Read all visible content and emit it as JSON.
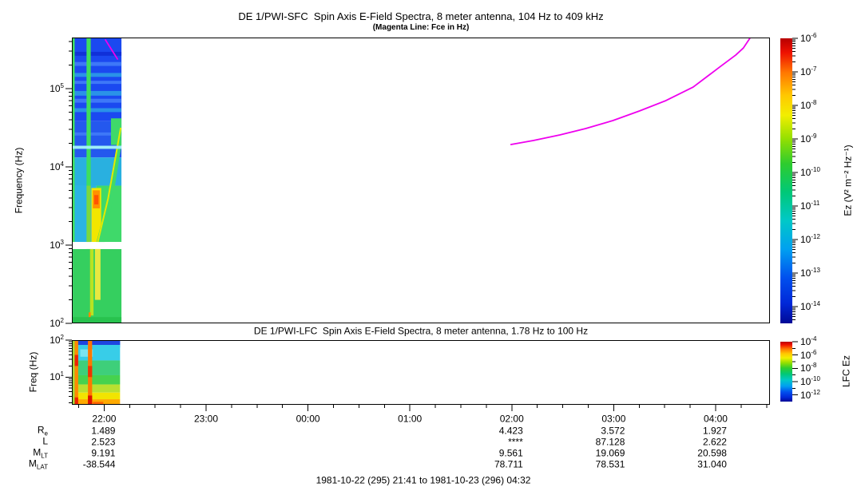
{
  "chart_data": [
    {
      "id": "sfc",
      "type": "heatmap",
      "title": "DE 1/PWI-SFC  Spin Axis E-Field Spectra, 8 meter antenna, 104 Hz to 409 kHz",
      "subtitle": "(Magenta Line: Fce in Hz)",
      "ylabel": "Frequency (Hz)",
      "yaxis": {
        "scale": "log",
        "unit": "Hz",
        "min_log": 2.0,
        "max_log": 5.653,
        "major_logs": [
          2,
          3,
          4,
          5
        ],
        "major_ticks": [
          "10^2",
          "10^3",
          "10^4",
          "10^5"
        ]
      },
      "xaxis": {
        "start_hour": 21.6833,
        "end_hour": 28.5333,
        "tick_hours": [
          22,
          23,
          24,
          25,
          26,
          27,
          28
        ],
        "tick_labels": [
          "22:00",
          "23:00",
          "00:00",
          "01:00",
          "02:00",
          "03:00",
          "04:00"
        ],
        "minor_step_hours": 0.25
      },
      "colorbar": {
        "label": "Ez (V² m⁻² Hz⁻¹)",
        "max_exp": -6,
        "min_exp": -14.5,
        "log_minors": true,
        "tick_exps": [
          -6,
          -7,
          -8,
          -9,
          -10,
          -11,
          -12,
          -13,
          -14
        ],
        "tick_labels": [
          "10^-6",
          "10^-7",
          "10^-8",
          "10^-9",
          "10^-10",
          "10^-11",
          "10^-12",
          "10^-13",
          "10^-14"
        ]
      },
      "fce_line": {
        "color": "#ee00ee",
        "segments": [
          [
            [
              0.0481,
              5.622
            ],
            [
              0.0653,
              5.378
            ]
          ],
          [
            [
              0.629,
              4.286
            ],
            [
              0.661,
              4.337
            ],
            [
              0.699,
              4.408
            ],
            [
              0.736,
              4.49
            ],
            [
              0.775,
              4.592
            ],
            [
              0.813,
              4.714
            ],
            [
              0.851,
              4.847
            ],
            [
              0.89,
              5.02
            ],
            [
              0.928,
              5.276
            ],
            [
              0.951,
              5.429
            ],
            [
              0.962,
              5.52
            ],
            [
              0.971,
              5.64
            ]
          ]
        ]
      },
      "band": {
        "t_end": 0.071,
        "features": [
          {
            "r": [
              0,
              0.071,
              4.585,
              5.653
            ],
            "c": "#1b49f0"
          },
          {
            "r": [
              0,
              0.071,
              4.12,
              4.585
            ],
            "c": "#2458ee"
          },
          {
            "r": [
              0,
              0.071,
              3.76,
              4.12
            ],
            "c": "#29b0e0"
          },
          {
            "r": [
              0,
              0.035,
              3.04,
              3.76
            ],
            "c": "#2ab4e4"
          },
          {
            "r": [
              0.035,
              0.071,
              3.04,
              3.76
            ],
            "c": "#3fd96a"
          },
          {
            "r": [
              0,
              0.071,
              2.0,
              2.95
            ],
            "c": "#35cf5f"
          },
          {
            "r": [
              0,
              0.071,
              5.42,
              5.47
            ],
            "c": "#1030d8"
          },
          {
            "r": [
              0,
              0.071,
              5.29,
              5.34
            ],
            "c": "#3e78f8"
          },
          {
            "r": [
              0,
              0.071,
              5.15,
              5.2
            ],
            "c": "#2a92e8"
          },
          {
            "r": [
              0,
              0.071,
              5.06,
              5.1
            ],
            "c": "#3e78f8"
          },
          {
            "r": [
              0,
              0.071,
              4.91,
              4.97
            ],
            "c": "#2a92e8"
          },
          {
            "r": [
              0,
              0.071,
              4.82,
              4.87
            ],
            "c": "#3e78f8"
          },
          {
            "r": [
              0,
              0.071,
              4.7,
              4.75
            ],
            "c": "#2a92e8"
          },
          {
            "r": [
              0,
              0.071,
              4.4,
              4.44
            ],
            "c": "#3e78f8"
          },
          {
            "r": [
              0,
              0.004,
              2.95,
              5.653
            ],
            "c": "#3ede5e"
          },
          {
            "r": [
              0.021,
              0.027,
              3.76,
              5.653
            ],
            "c": "#3ede5e"
          },
          {
            "r": [
              0.021,
              0.027,
              2.95,
              3.76
            ],
            "c": "#7ad840"
          },
          {
            "r": [
              0.028,
              0.042,
              3.04,
              3.73
            ],
            "c": "#f2e600"
          },
          {
            "r": [
              0.03,
              0.04,
              3.47,
              3.7
            ],
            "c": "#ff9100"
          },
          {
            "r": [
              0.032,
              0.038,
              3.52,
              3.64
            ],
            "c": "#ff5500"
          },
          {
            "p": [
              [
                0.034,
                3.0
              ],
              [
                0.05,
                3.55
              ],
              [
                0.062,
                4.15
              ],
              [
                0.071,
                4.62
              ],
              [
                0.071,
                4.28
              ],
              [
                0.058,
                3.55
              ],
              [
                0.046,
                3.0
              ]
            ],
            "c": "#3fd96a"
          },
          {
            "r": [
              0.056,
              0.071,
              4.28,
              4.62
            ],
            "c": "#3fd96a"
          },
          {
            "l": [
              [
                0.036,
                3.0
              ],
              [
                0.052,
                3.6
              ],
              [
                0.064,
                4.2
              ],
              [
                0.07,
                4.5
              ]
            ],
            "c": "#e3ea00",
            "w": 2
          },
          {
            "r": [
              0,
              0.071,
              4.23,
              4.27
            ],
            "c": "#9feef8"
          },
          {
            "r": [
              0,
              0.071,
              2.95,
              3.04
            ],
            "c": "#ffffff"
          },
          {
            "r": [
              0.026,
              0.031,
              2.1,
              2.95
            ],
            "c": "#b8e322"
          },
          {
            "r": [
              0.033,
              0.041,
              2.3,
              2.95
            ],
            "c": "#e8e840"
          },
          {
            "r": [
              0.024,
              0.027,
              2.02,
              2.14
            ],
            "c": "#ff8800"
          },
          {
            "r": [
              0,
              0.071,
              2.0,
              2.08
            ],
            "c": "#28c24e"
          }
        ]
      }
    },
    {
      "id": "lfc",
      "type": "heatmap",
      "title": "DE 1/PWI-LFC  Spin Axis E-Field Spectra, 8 meter antenna, 1.78 Hz to 100 Hz",
      "ylabel": "Freq (Hz)",
      "yaxis": {
        "scale": "log",
        "unit": "Hz",
        "min_log": 0.25,
        "max_log": 2.0,
        "major_logs": [
          1,
          2
        ],
        "major_ticks": [
          "10^1",
          "10^2"
        ]
      },
      "colorbar": {
        "label": "LFC Ez",
        "max_exp": -4,
        "min_exp": -13,
        "tick_exps": [
          -4,
          -6,
          -8,
          -10,
          -12
        ],
        "tick_labels": [
          "10^-4",
          "10^-6",
          "10^-8",
          "10^-10",
          "10^-12"
        ],
        "minor_exps": [
          -5,
          -7,
          -9,
          -11
        ]
      },
      "band": {
        "t_end": 0.069,
        "features": [
          {
            "r": [
              0,
              0.069,
              1.8,
              2.0
            ],
            "c": "#2f9ae8"
          },
          {
            "r": [
              0.008,
              0.069,
              1.87,
              2.0
            ],
            "c": "#1f45e0"
          },
          {
            "r": [
              0,
              0.069,
              1.45,
              1.87
            ],
            "c": "#38cde8"
          },
          {
            "r": [
              0,
              0.069,
              1.05,
              1.45
            ],
            "c": "#3ecf7a"
          },
          {
            "r": [
              0,
              0.069,
              0.8,
              1.05
            ],
            "c": "#46d24e"
          },
          {
            "r": [
              0,
              0.069,
              0.58,
              0.8
            ],
            "c": "#b8e030"
          },
          {
            "r": [
              0,
              0.069,
              0.4,
              0.58
            ],
            "c": "#f2e400"
          },
          {
            "r": [
              0,
              0.069,
              0.25,
              0.4
            ],
            "c": "#ffaa00"
          },
          {
            "r": [
              0.012,
              0.03,
              1.55,
              1.75
            ],
            "c": "#7ae4f2"
          },
          {
            "r": [
              0,
              0.004,
              0.25,
              2.0
            ],
            "c": "#9fd838"
          },
          {
            "r": [
              0.004,
              0.009,
              0.25,
              2.0
            ],
            "c": "#ff8800"
          },
          {
            "r": [
              0.004,
              0.009,
              1.3,
              1.6
            ],
            "c": "#ee2200"
          },
          {
            "r": [
              0.004,
              0.009,
              0.25,
              0.45
            ],
            "c": "#ee2200"
          },
          {
            "r": [
              0.023,
              0.029,
              0.25,
              2.0
            ],
            "c": "#ff7700"
          },
          {
            "r": [
              0.023,
              0.029,
              1.0,
              1.3
            ],
            "c": "#ee3300"
          },
          {
            "r": [
              0.023,
              0.029,
              0.25,
              0.5
            ],
            "c": "#dd1100"
          },
          {
            "r": [
              0.03,
              0.045,
              0.25,
              0.33
            ],
            "c": "#ff6600"
          }
        ]
      }
    }
  ],
  "colorbar_gradient": [
    [
      "0",
      "#b80000"
    ],
    [
      "0.05",
      "#ee1100"
    ],
    [
      "0.12",
      "#ff7700"
    ],
    [
      "0.20",
      "#ffc800"
    ],
    [
      "0.27",
      "#f2ee00"
    ],
    [
      "0.35",
      "#97e000"
    ],
    [
      "0.44",
      "#2ecc2e"
    ],
    [
      "0.54",
      "#00c878"
    ],
    [
      "0.64",
      "#00c8c8"
    ],
    [
      "0.74",
      "#00a0f0"
    ],
    [
      "0.84",
      "#0050ee"
    ],
    [
      "0.93",
      "#0028d8"
    ],
    [
      "1",
      "#000a96"
    ]
  ],
  "ephemeris": {
    "rows": [
      {
        "base": "R",
        "sub": "e"
      },
      {
        "base": "L",
        "sub": ""
      },
      {
        "base": "M",
        "sub": "LT"
      },
      {
        "base": "M",
        "sub": "LAT"
      }
    ],
    "columns": [
      {
        "time": "22:00",
        "hour": 22,
        "values": [
          "1.489",
          "2.523",
          "9.191",
          "-38.544"
        ]
      },
      {
        "time": "02:00",
        "hour": 26,
        "values": [
          "4.423",
          "****",
          "9.561",
          "78.711"
        ]
      },
      {
        "time": "03:00",
        "hour": 27,
        "values": [
          "3.572",
          "87.128",
          "19.069",
          "78.531"
        ]
      },
      {
        "time": "04:00",
        "hour": 28,
        "values": [
          "1.927",
          "2.622",
          "20.598",
          "31.040"
        ]
      }
    ]
  },
  "footer": "1981-10-22 (295) 21:41 to 1981-10-23 (296) 04:32"
}
